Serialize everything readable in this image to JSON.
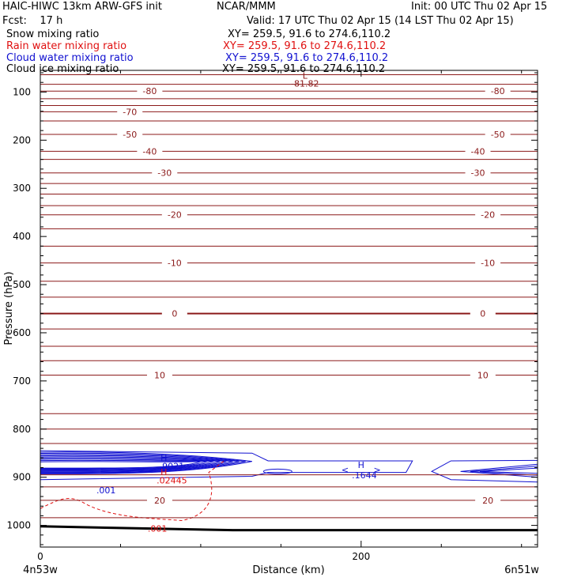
{
  "header": {
    "model": "HAIC-HIWC 13km ARW-GFS init",
    "org": "NCAR/MMM",
    "init": "Init: 00 UTC Thu 02 Apr 15",
    "fcst": "Fcst:    17 h",
    "valid": "Valid: 17 UTC Thu 02 Apr 15 (14 LST Thu 02 Apr 15)"
  },
  "legend": [
    {
      "label": "Snow mixing ratio",
      "xy": "XY= 259.5, 91.6 to 274.6,110.2",
      "color": "#000000"
    },
    {
      "label": "Rain water mixing ratio",
      "xy": "XY= 259.5, 91.6 to 274.6,110.2",
      "color": "#e01010"
    },
    {
      "label": "Cloud water mixing ratio",
      "xy": "XY= 259.5, 91.6 to 274.6,110.2",
      "color": "#1010d0"
    },
    {
      "label": "Cloud ice mixing ratio",
      "xy": "XY= 259.5, 91.6 to 274.6,110.2",
      "color": "#000000"
    }
  ],
  "chart_data": {
    "type": "line",
    "xlabel": "Distance (km)",
    "ylabel": "Pressure (hPa)",
    "xlim": [
      0,
      310
    ],
    "ylim": [
      1045,
      55
    ],
    "x_ticks": [
      0,
      200
    ],
    "y_ticks": [
      100,
      200,
      300,
      400,
      500,
      600,
      700,
      800,
      900,
      1000
    ],
    "x_end_labels": {
      "left": "4n53w",
      "right": "6n51w"
    },
    "temperature_color": "#8b1a1a",
    "isotherms": [
      {
        "p": 64
      },
      {
        "p": 84
      },
      {
        "p": 98,
        "label": "-80",
        "at": [
          22,
          92
        ]
      },
      {
        "p": 114
      },
      {
        "p": 128
      },
      {
        "p": 141,
        "label": "-70",
        "at": [
          18
        ]
      },
      {
        "p": 160
      },
      {
        "p": 188,
        "label": "-50",
        "at": [
          18,
          92
        ]
      },
      {
        "p": 223,
        "label": "-40",
        "at": [
          22,
          88
        ]
      },
      {
        "p": 240
      },
      {
        "p": 268,
        "label": "-30",
        "at": [
          25,
          88
        ]
      },
      {
        "p": 290
      },
      {
        "p": 312
      },
      {
        "p": 336
      },
      {
        "p": 355,
        "label": "-20",
        "at": [
          27,
          90
        ]
      },
      {
        "p": 384
      },
      {
        "p": 420
      },
      {
        "p": 455,
        "label": "-10",
        "at": [
          27,
          90
        ]
      },
      {
        "p": 493
      },
      {
        "p": 526
      },
      {
        "p": 560,
        "label": "0",
        "at": [
          27,
          89
        ],
        "bold": true
      },
      {
        "p": 592
      },
      {
        "p": 628
      },
      {
        "p": 658
      },
      {
        "p": 688,
        "label": "10",
        "at": [
          24,
          89
        ]
      },
      {
        "p": 768
      },
      {
        "p": 800
      },
      {
        "p": 830
      },
      {
        "p": 895
      },
      {
        "p": 920
      },
      {
        "p": 948,
        "label": "20",
        "at": [
          24,
          90
        ]
      },
      {
        "p": 984
      }
    ],
    "annotations": [
      {
        "text": "L",
        "x": 165,
        "p": 72,
        "color": "#8b1a1a"
      },
      {
        "text": "-81.82",
        "x": 165,
        "p": 89,
        "color": "#8b1a1a"
      },
      {
        "text": "H",
        "x": 77,
        "p": 866,
        "color": "#1010d0"
      },
      {
        "text": ".9021",
        "x": 82,
        "p": 883,
        "color": "#1010d0"
      },
      {
        "text": "H",
        "x": 77,
        "p": 896,
        "color": "#e01010"
      },
      {
        "text": ".02445",
        "x": 82,
        "p": 913,
        "color": "#e01010"
      },
      {
        "text": "H",
        "x": 200,
        "p": 881,
        "color": "#1010d0"
      },
      {
        "text": "<",
        "x": 190,
        "p": 891,
        "color": "#1010d0"
      },
      {
        "text": ">",
        "x": 210,
        "p": 891,
        "color": "#1010d0"
      },
      {
        "text": ".1644",
        "x": 202,
        "p": 902,
        "color": "#1010d0"
      },
      {
        "text": ".001",
        "x": 41,
        "p": 933,
        "color": "#1010d0"
      },
      {
        "text": ".001",
        "x": 73,
        "p": 1013,
        "color": "#e01010"
      }
    ]
  }
}
